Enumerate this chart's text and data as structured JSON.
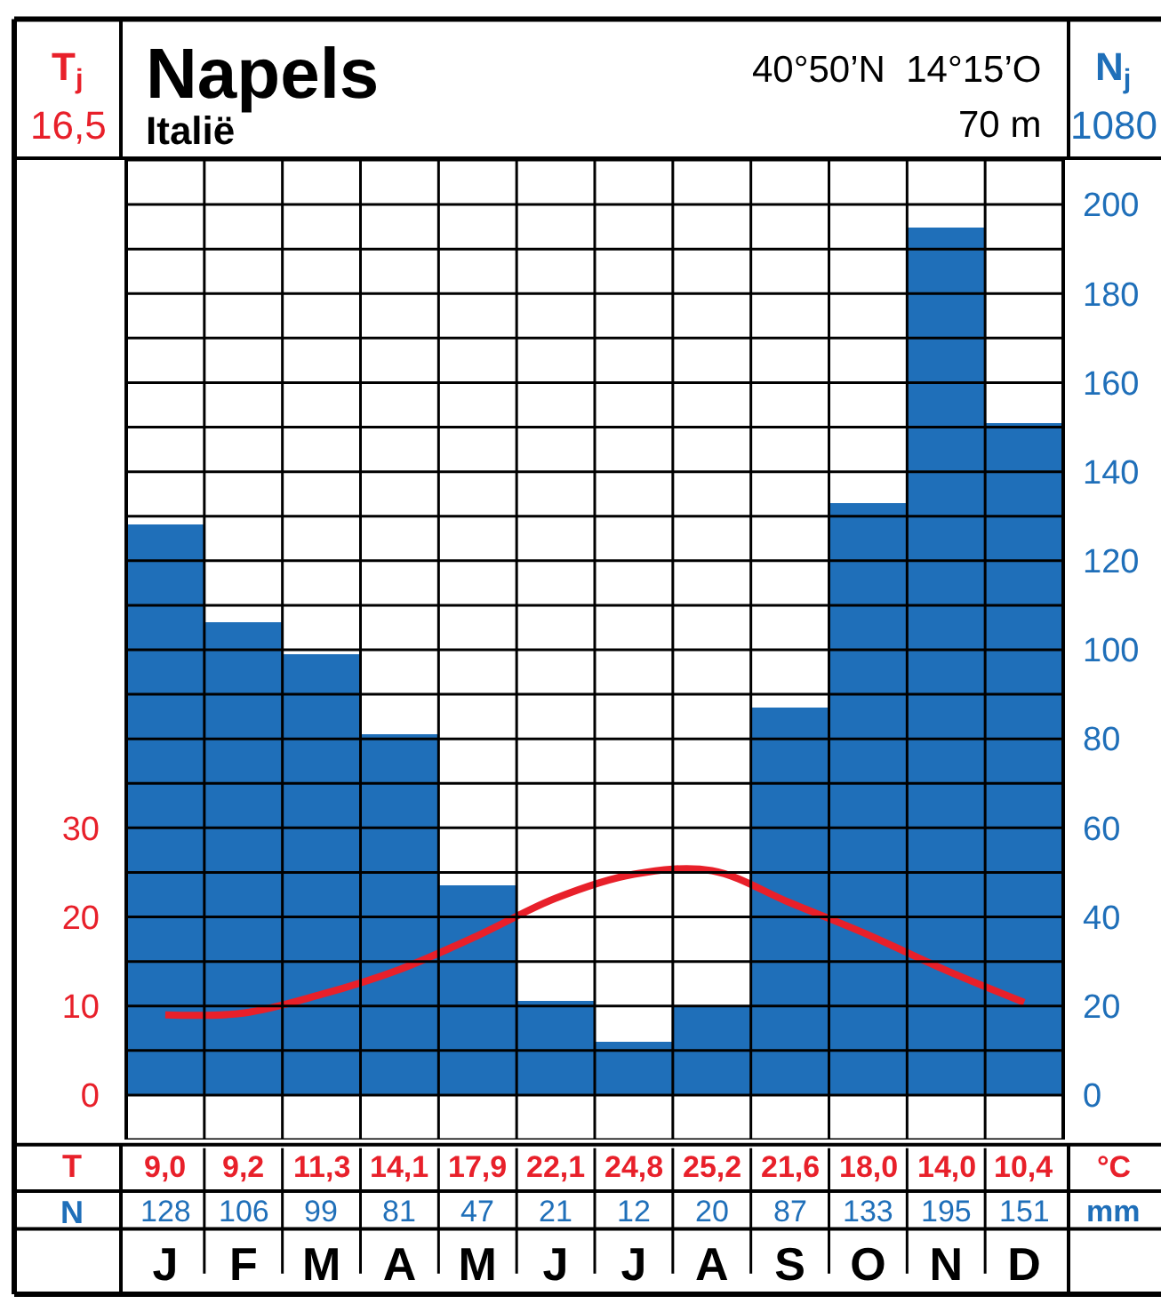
{
  "chart_data": {
    "type": "bar",
    "title": "Napels",
    "subtitle": "Italië",
    "categories": [
      "J",
      "F",
      "M",
      "A",
      "M",
      "J",
      "J",
      "A",
      "S",
      "O",
      "N",
      "D"
    ],
    "series": [
      {
        "name": "N",
        "axis": "y2",
        "color": "#1f6fb9",
        "values": [
          128,
          106,
          99,
          81,
          47,
          21,
          12,
          20,
          87,
          133,
          195,
          151
        ],
        "value_labels": [
          "128",
          "106",
          "99",
          "81",
          "47",
          "21",
          "12",
          "20",
          "87",
          "133",
          "195",
          "151"
        ]
      },
      {
        "name": "T",
        "type": "line",
        "color": "#e8202a",
        "values": [
          9.0,
          9.2,
          11.3,
          14.1,
          17.9,
          22.1,
          24.8,
          25.2,
          21.6,
          18.0,
          14.0,
          10.4
        ],
        "value_labels": [
          "9,0",
          "9,2",
          "11,3",
          "14,1",
          "17,9",
          "22,1",
          "24,8",
          "25,2",
          "21,6",
          "18,0",
          "14,0",
          "10,4"
        ]
      }
    ],
    "ylim": [
      -5,
      105
    ],
    "yticks": [
      0,
      10,
      20,
      30
    ],
    "y2lim": [
      -10,
      210
    ],
    "y2ticks": [
      {
        "value": -10,
        "label": null
      },
      0,
      {
        "value": 10,
        "label": null
      },
      20,
      {
        "value": 30,
        "label": null
      },
      40,
      {
        "value": 50,
        "label": null
      },
      60,
      {
        "value": 70,
        "label": null
      },
      80,
      {
        "value": 90,
        "label": null
      },
      100,
      {
        "value": 110,
        "label": null
      },
      120,
      {
        "value": 130,
        "label": null
      },
      140,
      {
        "value": 150,
        "label": null
      },
      160,
      {
        "value": 170,
        "label": null
      },
      180,
      {
        "value": 190,
        "label": null
      },
      200,
      {
        "value": 210,
        "label": null
      }
    ],
    "annotations": [
      "T$_{j}$",
      "16,5",
      "N$_{j}$",
      "1080",
      "40°50’N  14°15’O",
      "70 m",
      "°C",
      "mm"
    ],
    "grid": "y",
    "legend": false,
    "marker": "none",
    "line_style": "solid",
    "data_labels": true
  }
}
